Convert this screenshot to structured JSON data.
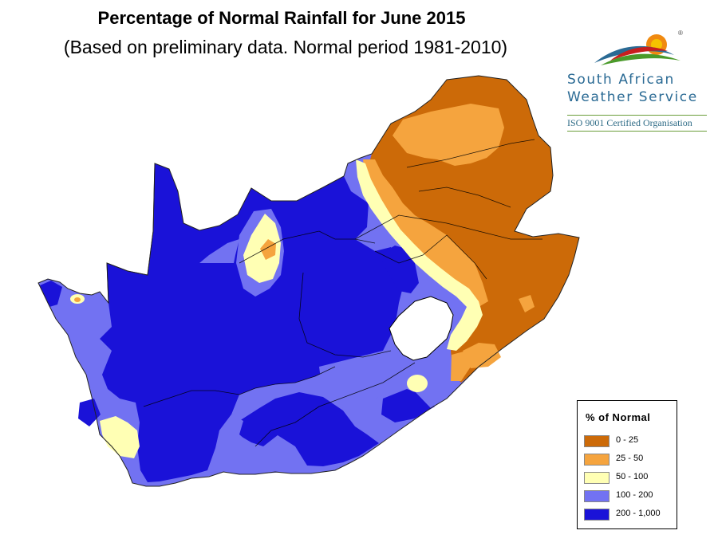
{
  "title": "Percentage of Normal Rainfall for June 2015",
  "subtitle": "(Based on preliminary data. Normal period 1981-2010)",
  "logo": {
    "line1": "South African",
    "line2": "Weather Service",
    "iso": "ISO 9001 Certified Organisation",
    "registered": "®"
  },
  "legend": {
    "title": "% of Normal",
    "items": [
      {
        "label": "0 - 25",
        "color": "#cc6a08"
      },
      {
        "label": "25 - 50",
        "color": "#f5a43e"
      },
      {
        "label": "50 - 100",
        "color": "#ffffb4"
      },
      {
        "label": "100 - 200",
        "color": "#7272f2"
      },
      {
        "label": "200 - 1,000",
        "color": "#1a12d8"
      }
    ]
  },
  "colors": {
    "band_0_25": "#cc6a08",
    "band_0_25_inner": "#f5a43e",
    "band_25_50": "#f5a43e",
    "band_50_100": "#ffffb4",
    "band_100_200": "#7272f2",
    "band_200_1000": "#1a12d8",
    "logo_blue": "#2a6a94",
    "logo_green": "#4a9a2a",
    "logo_orange": "#f08a10",
    "logo_red": "#c81e1e"
  }
}
